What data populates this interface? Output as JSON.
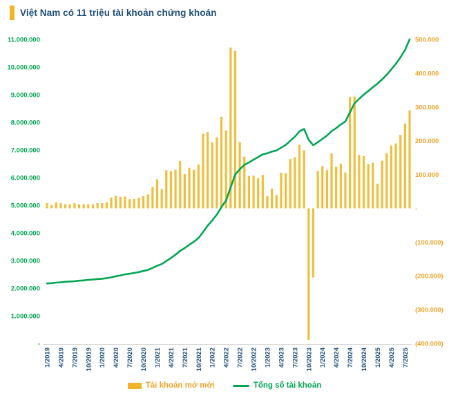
{
  "header": {
    "title": "Việt Nam có 11 triệu tài khoản chứng khoán"
  },
  "colors": {
    "accent_gold": "#F0B429",
    "bar": "#F0BE3D",
    "line": "#00A651",
    "left_axis_text": "#00A651",
    "right_axis_text": "#F0A32A",
    "x_axis_text": "#1F4E79",
    "title_text": "#1F4E79",
    "axis_line": "#D9D9D9"
  },
  "chart_data": {
    "type": "bar",
    "title": "Việt Nam có 11 triệu tài khoản chứng khoán",
    "x_tick_labels": [
      "1/2019",
      "4/2019",
      "7/2019",
      "10/2019",
      "1/2020",
      "4/2020",
      "7/2020",
      "10/2020",
      "1/2021",
      "4/2021",
      "7/2021",
      "10/2021",
      "1/2022",
      "4/2022",
      "7/2022",
      "10/2022",
      "1/2023",
      "4/2023",
      "7/2023",
      "10/2023",
      "1/2024",
      "4/2024",
      "7/2024",
      "10/2024",
      "1/2025",
      "4/2025",
      "7/2025"
    ],
    "months_per_tick": 3,
    "left_axis": {
      "min": 0,
      "max": 11000000,
      "step": 1000000,
      "labels": [
        "11.000.000",
        "10.000.000",
        "9.000.000",
        "8.000.000",
        "7.000.000",
        "6.000.000",
        "5.000.000",
        "4.000.000",
        "3.000.000",
        "2.000.000",
        "1.000.000",
        "-"
      ]
    },
    "right_axis": {
      "min": -400000,
      "max": 500000,
      "step": 100000,
      "labels": [
        "500.000",
        "400.000",
        "300.000",
        "200.000",
        "100.000",
        "-",
        "(100.000)",
        "(200.000)",
        "(300.000)",
        "(400.000)"
      ]
    },
    "grid": false,
    "legend_position": "bottom",
    "series": [
      {
        "name": "Tài khoản mở mới",
        "type": "bar",
        "axis": "right",
        "unit": "accounts/month (thousands)",
        "values_thousands": [
          15,
          10,
          18,
          15,
          12,
          12,
          15,
          12,
          12,
          12,
          12,
          15,
          15,
          18,
          32,
          37,
          34,
          35,
          27,
          28,
          31,
          36,
          41,
          63,
          86,
          57,
          113,
          110,
          114,
          140,
          101,
          120,
          114,
          129,
          221,
          226,
          195,
          210,
          271,
          231,
          476,
          466,
          196,
          153,
          96,
          96,
          89,
          99,
          36,
          58,
          39,
          105,
          104,
          146,
          151,
          188,
          172,
          -390,
          -205,
          110,
          125,
          113,
          163,
          123,
          132,
          106,
          330,
          331,
          158,
          155,
          131,
          135,
          73,
          141,
          163,
          186,
          192,
          217,
          251,
          290
        ]
      },
      {
        "name": "Tổng số tài khoản",
        "type": "line",
        "axis": "left",
        "unit": "accounts (millions)",
        "values_millions": [
          2.17,
          2.18,
          2.2,
          2.21,
          2.23,
          2.24,
          2.25,
          2.27,
          2.28,
          2.3,
          2.31,
          2.33,
          2.34,
          2.36,
          2.39,
          2.43,
          2.46,
          2.5,
          2.52,
          2.55,
          2.58,
          2.62,
          2.66,
          2.73,
          2.81,
          2.87,
          2.98,
          3.09,
          3.21,
          3.35,
          3.45,
          3.57,
          3.68,
          3.81,
          4.03,
          4.26,
          4.45,
          4.66,
          4.93,
          5.17,
          5.64,
          6.11,
          6.3,
          6.46,
          6.55,
          6.65,
          6.74,
          6.84,
          6.88,
          6.94,
          6.98,
          7.08,
          7.18,
          7.33,
          7.48,
          7.67,
          7.76,
          7.37,
          7.17,
          7.28,
          7.4,
          7.52,
          7.68,
          7.79,
          7.92,
          8.03,
          8.36,
          8.69,
          8.85,
          9.0,
          9.13,
          9.27,
          9.4,
          9.55,
          9.72,
          9.91,
          10.12,
          10.35,
          10.62,
          11.0
        ]
      }
    ]
  },
  "legend": {
    "bar_label": "Tài khoản mở mới",
    "line_label": "Tổng số tài khoản"
  }
}
